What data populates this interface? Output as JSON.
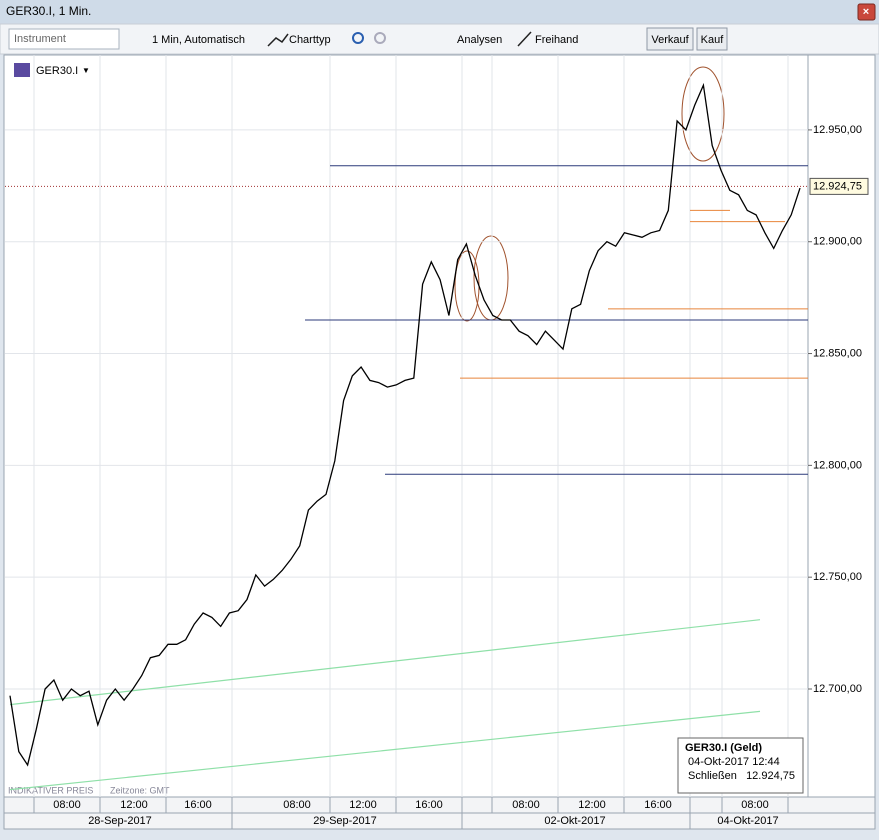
{
  "window": {
    "title": "GER30.I, 1 Min."
  },
  "toolbar": {
    "instrument": "Instrument",
    "interval": "1 Min,  Automatisch",
    "chart_type": "Charttyp",
    "analyses": "Analysen",
    "freehand": "Freihand",
    "sell": "Verkauf",
    "buy": "Kauf"
  },
  "chart_data": {
    "type": "line",
    "instrument": "GER30.I",
    "series": [
      {
        "name": "GER30.I",
        "color": "#000000",
        "values": [
          12697,
          12672,
          12666,
          12682,
          12700,
          12704,
          12695,
          12700,
          12697,
          12699,
          12684,
          12695,
          12700,
          12695,
          12700,
          12706,
          12714,
          12715,
          12720,
          12720,
          12722,
          12729,
          12734,
          12732,
          12728,
          12734,
          12735,
          12740,
          12751,
          12746,
          12749,
          12753,
          12758,
          12764,
          12780,
          12784,
          12787,
          12802,
          12829,
          12840,
          12844,
          12838,
          12837,
          12835,
          12836,
          12838,
          12839,
          12881,
          12891,
          12883,
          12867,
          12892,
          12899,
          12885,
          12874,
          12867,
          12865,
          12865,
          12860,
          12858,
          12854,
          12860,
          12856,
          12852,
          12870,
          12872,
          12887,
          12896,
          12900,
          12898,
          12904,
          12903,
          12902,
          12904,
          12905,
          12914,
          12954,
          12950,
          12961,
          12970,
          12943,
          12932,
          12923,
          12921,
          12914,
          12912,
          12904,
          12897,
          12905,
          12912,
          12924
        ]
      }
    ],
    "ylim": [
      12651.7,
      12983.5
    ],
    "yticks": [
      {
        "value": 12700,
        "label": "12.700,00"
      },
      {
        "value": 12750,
        "label": "12.750,00"
      },
      {
        "value": 12800,
        "label": "12.800,00"
      },
      {
        "value": 12850,
        "label": "12.850,00"
      },
      {
        "value": 12900,
        "label": "12.900,00"
      },
      {
        "value": 12950,
        "label": "12.950,00"
      }
    ],
    "time_labels": [
      "08:00",
      "12:00",
      "16:00",
      "08:00",
      "12:00",
      "16:00",
      "08:00",
      "12:00",
      "16:00",
      "08:00"
    ],
    "date_labels": [
      "28-Sep-2017",
      "29-Sep-2017",
      "02-Okt-2017",
      "04-Okt-2017"
    ],
    "levels": [
      {
        "color": "#2b3a7a",
        "value": 12934
      },
      {
        "color": "#2b3a7a",
        "value": 12865
      },
      {
        "color": "#2b3a7a",
        "value": 12796
      },
      {
        "color": "#e8843a",
        "value": 12839
      },
      {
        "color": "#e8843a",
        "value": 12870
      },
      {
        "color": "#e8843a",
        "value": 12914
      },
      {
        "color": "#e8843a",
        "value": 12909
      }
    ],
    "trendlines": [
      {
        "color": "#8fe0a8",
        "values": [
          12693,
          12731
        ]
      },
      {
        "color": "#8fe0a8",
        "values": [
          12655,
          12690
        ]
      }
    ],
    "last_price": {
      "value": 12924.75,
      "label": "12.924,75"
    },
    "grid": true,
    "footer": {
      "note": "INDIKATIVER PREIS",
      "timezone": "Zeitzone: GMT"
    },
    "info_box": {
      "title": "GER30.I (Geld)",
      "time": "04-Okt-2017 12:44",
      "close_label": "Schließen"
    }
  }
}
